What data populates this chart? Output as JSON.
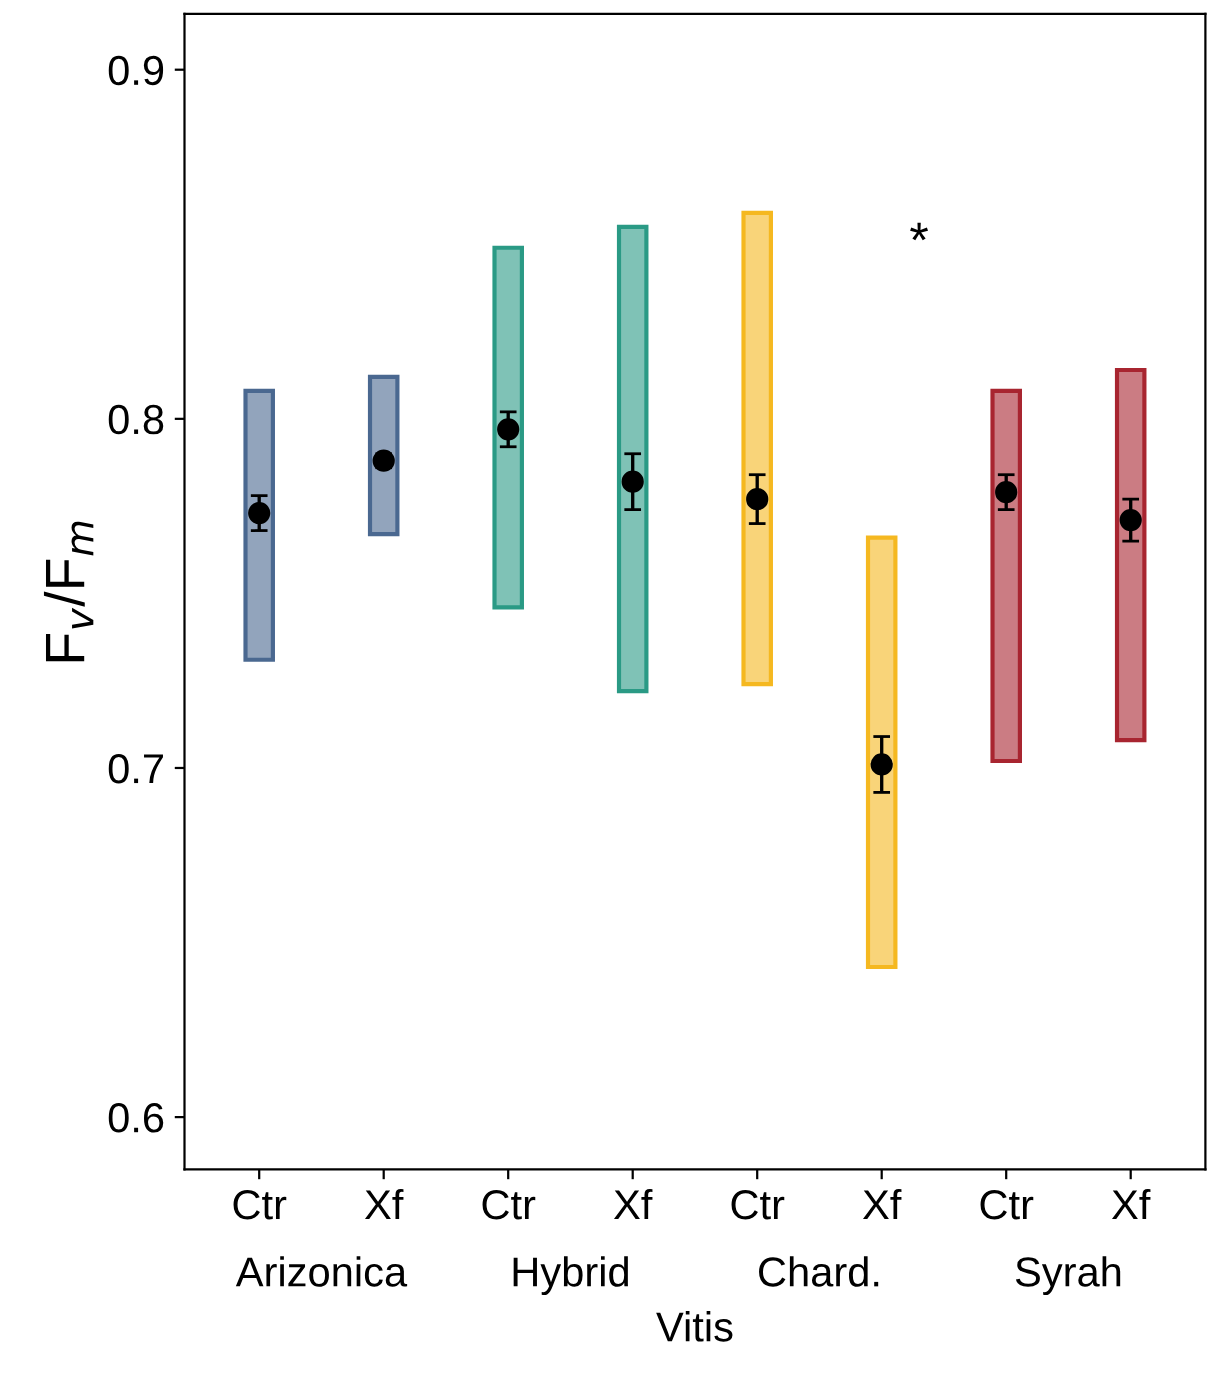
{
  "chart_data": {
    "type": "bar",
    "ylabel": "F$_{v}$/F$_{m}$",
    "xlabel": "Vitis",
    "categories": [
      "Ctr",
      "Xf",
      "Ctr",
      "Xf",
      "Ctr",
      "Xf",
      "Ctr",
      "Xf"
    ],
    "annotations": [
      "Arizonica",
      "Hybrid",
      "Chard.",
      "Syrah",
      "*"
    ],
    "ylim": [
      0.585,
      0.916
    ],
    "yticks": [
      0.6,
      0.7,
      0.8,
      0.9
    ],
    "grid": false,
    "legend": false,
    "series": [
      {
        "colors": [
          "#4a6890",
          "#4a6890",
          "#2a9a85",
          "#2a9a85",
          "#f5b820",
          "#f5b820",
          "#a82530",
          "#a82530"
        ],
        "base": [
          0.731,
          0.767,
          0.746,
          0.722,
          0.724,
          0.643,
          0.702,
          0.708
        ],
        "values": [
          0.077,
          0.045,
          0.103,
          0.133,
          0.135,
          0.123,
          0.106,
          0.106
        ]
      },
      {
        "type": "scatter",
        "color": "#000000",
        "marker": "circle",
        "values": [
          0.773,
          0.788,
          0.797,
          0.782,
          0.777,
          0.701,
          0.779,
          0.771
        ],
        "errors": [
          0.005,
          0.002,
          0.005,
          0.008,
          0.007,
          0.008,
          0.005,
          0.006
        ]
      }
    ]
  }
}
